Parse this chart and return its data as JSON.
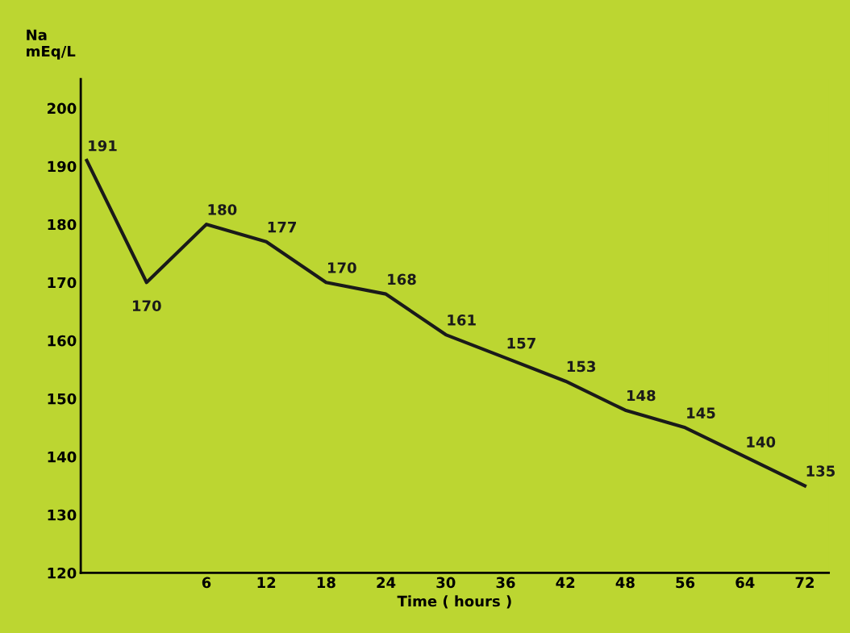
{
  "chart_data": {
    "type": "line",
    "xlabel": "Time ( hours )",
    "ylabel": "Na\nmEq/L",
    "categories": [
      null,
      null,
      "6",
      "12",
      "18",
      "24",
      "30",
      "36",
      "42",
      "48",
      "56",
      "64",
      "72"
    ],
    "series": [
      {
        "color": "#1a1a1a",
        "values": [
          191,
          170,
          180,
          177,
          170,
          168,
          161,
          157,
          153,
          148,
          145,
          140,
          135
        ]
      }
    ],
    "ylim": [
      120,
      205
    ],
    "yticks": [
      120,
      130,
      140,
      150,
      160,
      170,
      180,
      190,
      200
    ],
    "data_labels": true,
    "grid": false,
    "legend": false,
    "marker": "none",
    "line_style": "solid"
  }
}
